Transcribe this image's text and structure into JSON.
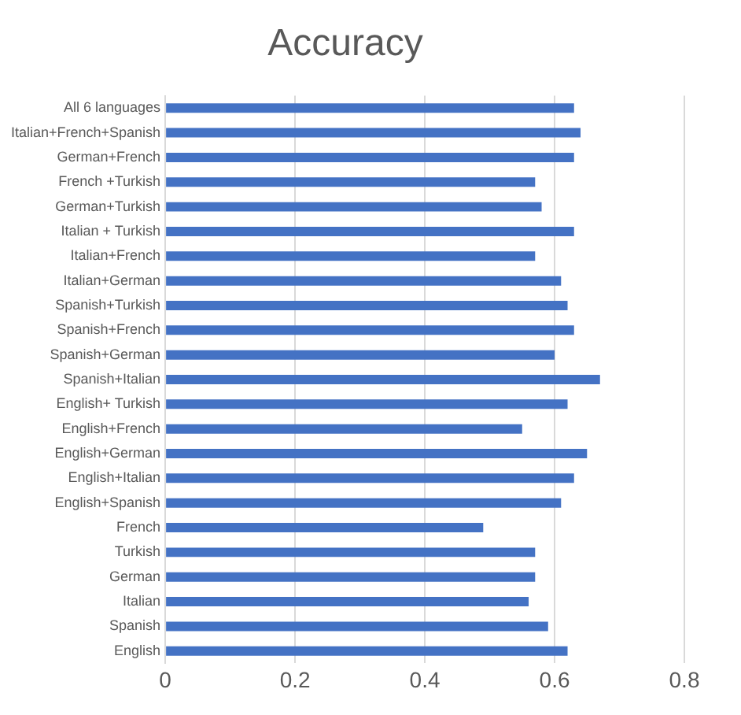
{
  "chart_data": {
    "type": "bar",
    "orientation": "horizontal",
    "title": "Accuracy",
    "categories": [
      "All 6 languages",
      "Italian+French+Spanish",
      "German+French",
      "French +Turkish",
      "German+Turkish",
      "Italian + Turkish",
      "Italian+French",
      "Italian+German",
      "Spanish+Turkish",
      "Spanish+French",
      "Spanish+German",
      "Spanish+Italian",
      "English+ Turkish",
      "English+French",
      "English+German",
      "English+Italian",
      "English+Spanish",
      "French",
      "Turkish",
      "German",
      "Italian",
      "Spanish",
      "English"
    ],
    "values": [
      0.63,
      0.64,
      0.63,
      0.57,
      0.58,
      0.63,
      0.57,
      0.61,
      0.62,
      0.63,
      0.6,
      0.67,
      0.62,
      0.55,
      0.65,
      0.63,
      0.61,
      0.49,
      0.57,
      0.57,
      0.56,
      0.59,
      0.62
    ],
    "color": "#4472c4",
    "xlim": [
      0,
      0.8
    ],
    "xticks": [
      0,
      0.2,
      0.4,
      0.6,
      0.8
    ],
    "grid": "x",
    "legend": false
  }
}
